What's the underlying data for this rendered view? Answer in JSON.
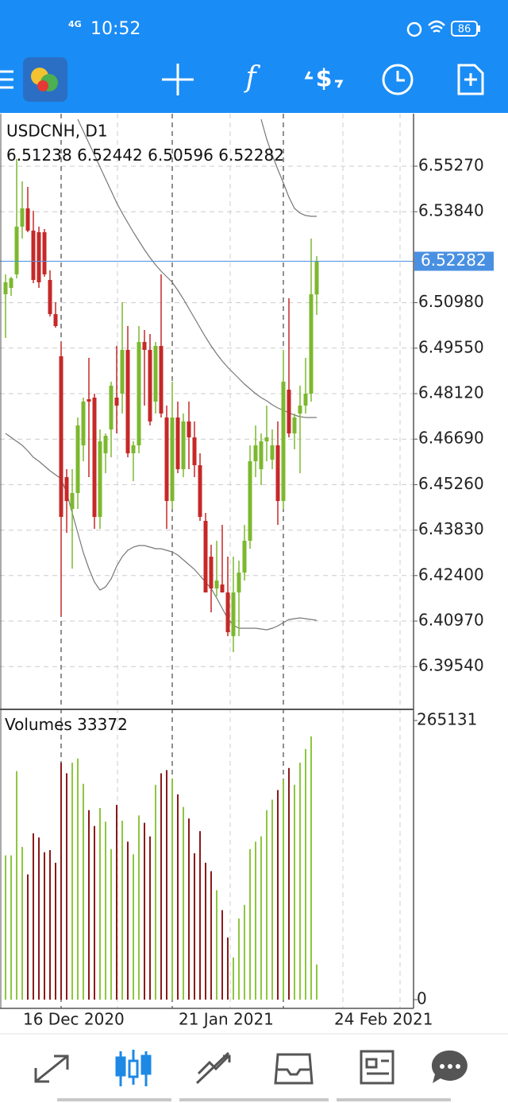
{
  "status_bar": {
    "network": "4G",
    "time": "10:52",
    "battery": "86"
  },
  "chart_data": {
    "type": "candlestick",
    "symbol_label": "USDCNH, D1",
    "categories": [
      null,
      null,
      null,
      null,
      null,
      null,
      null,
      null,
      null,
      null,
      "16 Dec 2020",
      null,
      null,
      null,
      null,
      null,
      null,
      null,
      null,
      null,
      null,
      null,
      null,
      null,
      null,
      null,
      null,
      null,
      null,
      null,
      "21 Jan 2021",
      null,
      null,
      null,
      null,
      null,
      null,
      null,
      null,
      null,
      null,
      null,
      null,
      null,
      null,
      null,
      null,
      null,
      null,
      null,
      "24 Feb 2021",
      null,
      null,
      null,
      null,
      null,
      null
    ],
    "ohlc": [
      [
        6.51245,
        6.5187,
        6.4987,
        6.5162
      ],
      [
        6.51445,
        6.51795,
        6.51195,
        6.51745
      ],
      [
        6.5187,
        6.55495,
        6.51745,
        6.5337
      ],
      [
        6.5337,
        6.54795,
        6.52995,
        6.53945
      ],
      [
        6.53945,
        6.5462,
        6.53195,
        6.53245
      ],
      [
        6.53245,
        6.5387,
        6.51595,
        6.51695
      ],
      [
        6.53195,
        6.5337,
        6.51445,
        6.5162
      ],
      [
        6.53195,
        6.53295,
        6.51795,
        6.5187
      ],
      [
        6.51695,
        6.51995,
        6.50545,
        6.5062
      ],
      [
        6.5062,
        6.50995,
        6.50195,
        6.50245
      ],
      [
        6.49295,
        6.49745,
        6.4112,
        6.44245
      ],
      [
        6.45495,
        6.45745,
        6.43745,
        6.44745
      ],
      [
        6.44495,
        6.45745,
        6.4262,
        6.44995
      ],
      [
        6.44995,
        6.4737,
        6.44495,
        6.4712
      ],
      [
        6.46495,
        6.47995,
        6.45995,
        6.4787
      ],
      [
        6.47945,
        6.49245,
        6.45495,
        6.4787
      ],
      [
        6.47995,
        6.4812,
        6.4387,
        6.44245
      ],
      [
        6.44245,
        6.46995,
        6.4387,
        6.4662
      ],
      [
        6.46245,
        6.4687,
        6.4562,
        6.46795
      ],
      [
        6.46995,
        6.48495,
        6.4612,
        6.4837
      ],
      [
        6.47995,
        6.4962,
        6.4687,
        6.47745
      ],
      [
        6.4812,
        6.50995,
        6.47495,
        6.49495
      ],
      [
        6.49495,
        6.50245,
        6.4612,
        6.46245
      ],
      [
        6.46245,
        6.4662,
        6.4537,
        6.46495
      ],
      [
        6.46495,
        6.50245,
        6.46245,
        6.49745
      ],
      [
        6.49745,
        6.5012,
        6.47745,
        6.49495
      ],
      [
        6.49495,
        6.49995,
        6.4712,
        6.47245
      ],
      [
        6.4787,
        6.49745,
        6.47495,
        6.4962
      ],
      [
        6.4962,
        6.5187,
        6.4737,
        6.47495
      ],
      [
        6.4737,
        6.47745,
        6.4387,
        6.44745
      ],
      [
        6.44745,
        6.48495,
        6.44495,
        6.4737
      ],
      [
        6.4737,
        6.4787,
        6.4562,
        6.45745
      ],
      [
        6.45745,
        6.47495,
        6.45495,
        6.47245
      ],
      [
        6.47245,
        6.4787,
        6.45745,
        6.46745
      ],
      [
        6.46745,
        6.47245,
        6.45495,
        6.4587
      ],
      [
        6.4587,
        6.46245,
        6.4412,
        6.44245
      ],
      [
        6.4412,
        6.4437,
        6.4187,
        6.4187
      ],
      [
        6.42995,
        6.4337,
        6.41245,
        6.41995
      ],
      [
        6.41995,
        6.43495,
        6.41745,
        6.42245
      ],
      [
        6.4212,
        6.43995,
        6.4187,
        6.4187
      ],
      [
        6.4187,
        6.42995,
        6.40495,
        6.4062
      ],
      [
        6.40495,
        6.42995,
        6.39995,
        6.4187
      ],
      [
        6.4187,
        6.4287,
        6.40495,
        6.42495
      ],
      [
        6.42495,
        6.43995,
        6.42245,
        6.43495
      ],
      [
        6.43495,
        6.46495,
        6.43245,
        6.45995
      ],
      [
        6.45995,
        6.4712,
        6.45495,
        6.46495
      ],
      [
        6.45745,
        6.4687,
        6.45245,
        6.4662
      ],
      [
        6.4662,
        6.47745,
        6.45995,
        6.46745
      ],
      [
        6.46045,
        6.46995,
        6.45745,
        6.46495
      ],
      [
        6.46495,
        6.47245,
        6.43995,
        6.44745
      ],
      [
        6.44745,
        6.49495,
        6.44495,
        6.48495
      ],
      [
        6.48245,
        6.5112,
        6.46745,
        6.4687
      ],
      [
        6.4687,
        6.47495,
        6.4637,
        6.4737
      ],
      [
        6.47495,
        6.4837,
        6.4562,
        6.47745
      ],
      [
        6.47745,
        6.49245,
        6.47495,
        6.4812
      ],
      [
        6.4812,
        6.52995,
        6.4787,
        6.51245
      ],
      [
        6.51238,
        6.52442,
        6.50596,
        6.52282
      ]
    ],
    "up_color": "#7cb82f",
    "down_color": "#c62828",
    "current_price_color": "#4a90e2",
    "ylim": [
      6.38195,
      6.5692
    ],
    "yticks": [
      {
        "value": 6.5527,
        "label": "6.55270"
      },
      {
        "value": 6.5384,
        "label": "6.53840"
      },
      {
        "value": 6.5098,
        "label": "6.50980"
      },
      {
        "value": 6.4955,
        "label": "6.49550"
      },
      {
        "value": 6.4812,
        "label": "6.48120"
      },
      {
        "value": 6.4669,
        "label": "6.46690"
      },
      {
        "value": 6.4526,
        "label": "6.45260"
      },
      {
        "value": 6.4383,
        "label": "6.43830"
      },
      {
        "value": 6.424,
        "label": "6.42400"
      },
      {
        "value": 6.4097,
        "label": "6.40970"
      },
      {
        "value": 6.3954,
        "label": "6.39540"
      }
    ],
    "grid": true,
    "overlays": [
      {
        "color": "#777777",
        "values": [
          null,
          null,
          null,
          null,
          null,
          null,
          null,
          null,
          null,
          null,
          null,
          null,
          null,
          null,
          null,
          null,
          null,
          null,
          null,
          null,
          null,
          null,
          null,
          null,
          null,
          null,
          null,
          null,
          null,
          null,
          null,
          null,
          null,
          null,
          null,
          null,
          null,
          null,
          null,
          null,
          null,
          null,
          null,
          null,
          null,
          null,
          6.56745,
          6.5612,
          6.5562,
          6.5517,
          6.54745,
          6.54295,
          6.53945,
          6.53795,
          6.5372,
          6.53695,
          6.53695
        ]
      },
      {
        "color": "#777777",
        "values": [
          null,
          null,
          null,
          null,
          null,
          null,
          null,
          null,
          null,
          null,
          null,
          null,
          null,
          6.56745,
          6.5637,
          6.55995,
          6.5562,
          6.55245,
          6.5487,
          6.54495,
          6.5412,
          6.53795,
          6.53495,
          6.53195,
          6.5292,
          6.52645,
          6.52395,
          6.5217,
          6.5197,
          6.51795,
          6.5162,
          6.5137,
          6.51095,
          6.50795,
          6.50495,
          6.50195,
          6.49895,
          6.4962,
          6.4937,
          6.49145,
          6.48945,
          6.4877,
          6.48595,
          6.4842,
          6.4827,
          6.4812,
          6.47995,
          6.47895,
          6.4777,
          6.4767,
          6.47595,
          6.4752,
          6.47445,
          6.47395,
          6.4737,
          6.4737,
          6.4737
        ]
      },
      {
        "color": "#777777",
        "values": [
          6.4687,
          6.46745,
          6.4662,
          6.46495,
          6.4632,
          6.4612,
          6.45995,
          6.45845,
          6.45695,
          6.4557,
          6.45445,
          6.44995,
          6.4437,
          6.43745,
          6.4312,
          6.4262,
          6.42195,
          6.41945,
          6.42045,
          6.42295,
          6.42695,
          6.42995,
          6.43195,
          6.43295,
          6.43345,
          6.43345,
          6.43295,
          6.43245,
          6.43245,
          6.43195,
          6.43145,
          6.43045,
          6.42895,
          6.42745,
          6.42595,
          6.42395,
          6.42195,
          6.41995,
          6.41695,
          6.4137,
          6.41045,
          6.40845,
          6.40745,
          6.40745,
          6.40745,
          6.40745,
          6.4072,
          6.40695,
          6.40745,
          6.4082,
          6.4092,
          6.4102,
          6.41045,
          6.4107,
          6.41045,
          6.4102,
          6.40995
        ]
      }
    ],
    "volume": {
      "label": "Volumes",
      "values": [
        137000,
        137000,
        217000,
        145000,
        119000,
        158000,
        154000,
        140000,
        142000,
        130000,
        225000,
        215000,
        225000,
        229000,
        205000,
        180000,
        165000,
        182000,
        169000,
        143000,
        185000,
        170000,
        150000,
        138000,
        175000,
        168000,
        155000,
        204000,
        215000,
        218000,
        210000,
        195000,
        183000,
        172000,
        139000,
        160000,
        130000,
        122000,
        104000,
        85000,
        59000,
        40000,
        77000,
        90000,
        143000,
        150000,
        155000,
        180000,
        190000,
        199000,
        209000,
        220000,
        204000,
        225000,
        238000,
        250000,
        33372
      ],
      "up_color": "#8dc63f",
      "down_color": "#8b1a1a",
      "ylim": [
        -8300,
        274950
      ],
      "yticks": [
        0,
        265131
      ]
    }
  }
}
